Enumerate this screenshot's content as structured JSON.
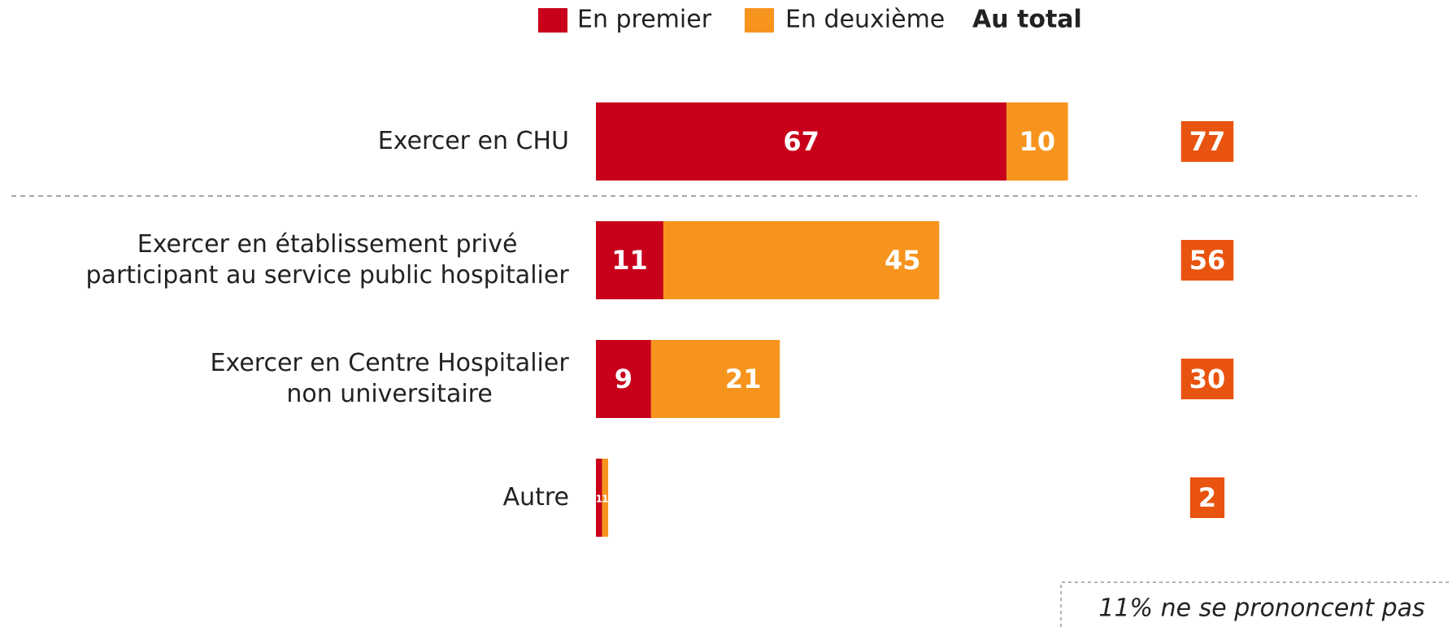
{
  "chart_data": {
    "type": "stacked-bar-horizontal",
    "categories": [
      [
        "Exercer en CHU"
      ],
      [
        "Exercer en établissement privé",
        "participant au service public  hospitalier"
      ],
      [
        "Exercer en Centre Hospitalier",
        "non universitaire"
      ],
      [
        "Autre"
      ]
    ],
    "series": [
      {
        "name": "En premier",
        "color": "#c8001a",
        "values": [
          67,
          11,
          9,
          1
        ]
      },
      {
        "name": "En deuxième",
        "color": "#f7941d",
        "values": [
          10,
          45,
          21,
          1
        ]
      }
    ],
    "totals": {
      "name": "Au total",
      "color": "#e8540f",
      "values": [
        77,
        56,
        30,
        2
      ]
    },
    "annotation": "11% ne se prononcent pas"
  }
}
